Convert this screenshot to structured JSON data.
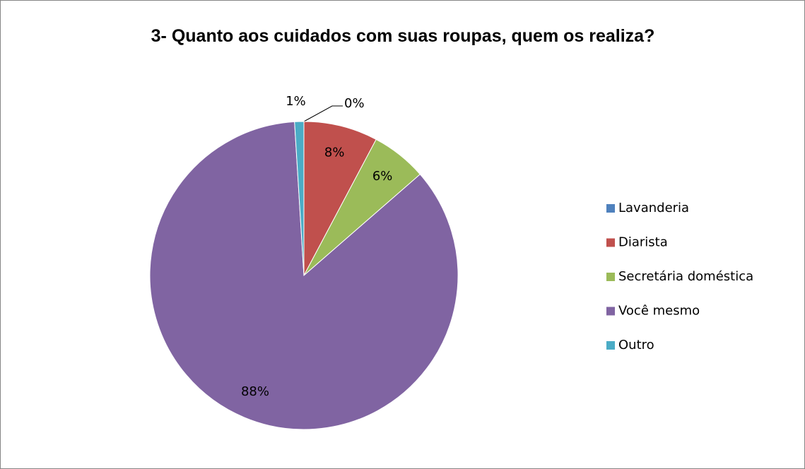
{
  "chart_data": {
    "type": "pie",
    "title": "3- Quanto aos cuidados com suas roupas, quem os realiza?",
    "categories": [
      "Lavanderia",
      "Diarista",
      "Secretária doméstica",
      "Você mesmo",
      "Outro"
    ],
    "values": [
      0,
      8,
      6,
      88,
      1
    ],
    "value_labels": [
      "0%",
      "8%",
      "6%",
      "88%",
      "1%"
    ],
    "colors": [
      "#4f81bd",
      "#c0504d",
      "#9bbb59",
      "#8064a2",
      "#4bacc6"
    ],
    "legend": "right"
  }
}
